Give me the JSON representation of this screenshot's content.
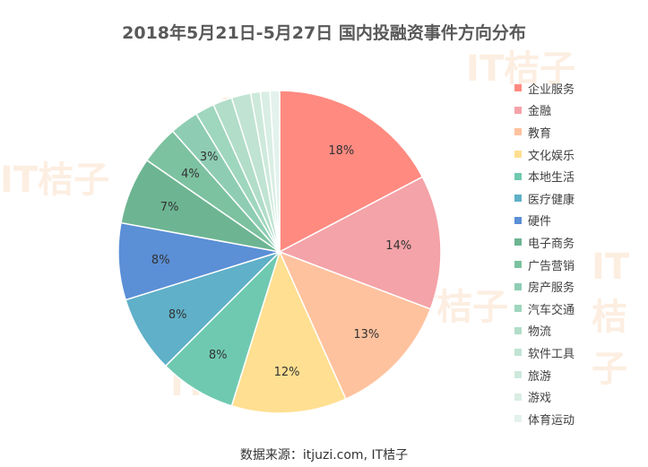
{
  "chart_data": {
    "type": "pie",
    "title": "2018年5月21日-5月27日  国内投融资事件方向分布",
    "source": "数据来源：itjuzi.com, IT桔子",
    "slices": [
      {
        "label": "企业服务",
        "value": 18,
        "display": "18%",
        "color": "#ff8a80"
      },
      {
        "label": "金融",
        "value": 14,
        "display": "14%",
        "color": "#f4a3a8"
      },
      {
        "label": "教育",
        "value": 13,
        "display": "13%",
        "color": "#ffc29e"
      },
      {
        "label": "文化娱乐",
        "value": 12,
        "display": "12%",
        "color": "#ffdf91"
      },
      {
        "label": "本地生活",
        "value": 8,
        "display": "8%",
        "color": "#6fc9b0"
      },
      {
        "label": "医疗健康",
        "value": 8,
        "display": "8%",
        "color": "#5fb0c8"
      },
      {
        "label": "硬件",
        "value": 8,
        "display": "8%",
        "color": "#5b8fd6"
      },
      {
        "label": "电子商务",
        "value": 7,
        "display": "7%",
        "color": "#6db592"
      },
      {
        "label": "广告营销",
        "value": 4,
        "display": "4%",
        "color": "#7cc2a0"
      },
      {
        "label": "房产服务",
        "value": 3,
        "display": "3%",
        "color": "#8ecdb4"
      },
      {
        "label": "汽车交通",
        "value": 2,
        "display": "",
        "color": "#9fd6be"
      },
      {
        "label": "物流",
        "value": 2,
        "display": "",
        "color": "#b1ddc9"
      },
      {
        "label": "软件工具",
        "value": 2,
        "display": "",
        "color": "#c0e3d3"
      },
      {
        "label": "旅游",
        "value": 1,
        "display": "",
        "color": "#cde9dc"
      },
      {
        "label": "游戏",
        "value": 1,
        "display": "",
        "color": "#d9eee4"
      },
      {
        "label": "体育运动",
        "value": 1,
        "display": "",
        "color": "#e3f2ec"
      }
    ],
    "legend_position": "right"
  },
  "watermark": {
    "text": "IT桔子",
    "color": "#f2994a"
  }
}
